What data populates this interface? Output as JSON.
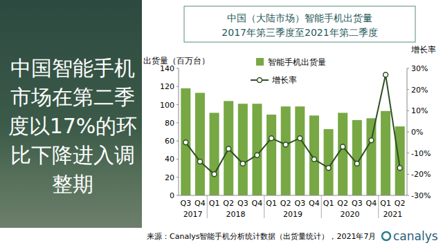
{
  "chart_data": {
    "type": "bar",
    "title": "中国（大陆市场）智能手机出货量",
    "subtitle": "2017年第三季度至2021年第二季度",
    "annotations": [
      "中国智能手机市场在第二季度以17%的环比下降进入调整期",
      "来源：Canalys智能手机分析统计数据（出货量统计），2021年7月",
      "canalys"
    ],
    "y_label": "出货量（百万台）",
    "y2_label": "增长率",
    "categories": [
      "Q3",
      "Q4",
      "Q1",
      "Q2",
      "Q3",
      "Q4",
      "Q1",
      "Q2",
      "Q3",
      "Q4",
      "Q1",
      "Q2",
      "Q3",
      "Q4",
      "Q1",
      "Q2"
    ],
    "groups": [
      {
        "label": "2017",
        "count": 2
      },
      {
        "label": "2018",
        "count": 4
      },
      {
        "label": "2019",
        "count": 4
      },
      {
        "label": "2020",
        "count": 4
      },
      {
        "label": "2021",
        "count": 2
      }
    ],
    "series": [
      {
        "name": "智能手机出货量",
        "type": "bar",
        "color": "#77a844",
        "values": [
          118,
          113,
          91,
          104,
          101,
          101,
          89,
          98,
          98,
          88,
          73,
          91,
          83,
          85,
          93,
          76
        ]
      },
      {
        "name": "增长率",
        "type": "line",
        "axis": "y2",
        "color": "#2f4f22",
        "marker": "circle",
        "line_style": "solid",
        "values": [
          -5,
          -14,
          -20,
          -8,
          -15,
          -11,
          -3,
          -6,
          -3,
          -13,
          -17,
          -7,
          -15,
          -4,
          27,
          -17
        ]
      }
    ],
    "ylim": [
      0,
      140
    ],
    "yticks": [
      0,
      20,
      40,
      60,
      80,
      100,
      120,
      140
    ],
    "y2lim": [
      -30,
      30
    ],
    "y2ticks": [
      {
        "value": -30,
        "label": "-30%"
      },
      {
        "value": -20,
        "label": "-20%"
      },
      {
        "value": -10,
        "label": "-10%"
      },
      {
        "value": 0,
        "label": "0%"
      },
      {
        "value": 10,
        "label": "10%"
      },
      {
        "value": 20,
        "label": "20%"
      },
      {
        "value": 30,
        "label": "30%"
      }
    ],
    "grid": false,
    "legend": "top",
    "data_labels": false
  }
}
